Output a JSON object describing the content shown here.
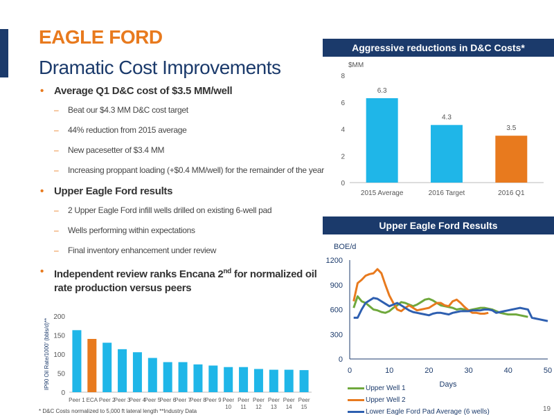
{
  "title": "EAGLE FORD",
  "subtitle": "Dramatic Cost Improvements",
  "bullets": [
    {
      "text": "Average Q1 D&C cost of $3.5 MM/well",
      "subs": [
        "Beat our $4.3 MM D&C cost target",
        "44% reduction from 2015 average",
        "New pacesetter of $3.4 MM",
        "Increasing proppant loading (+$0.4 MM/well) for the remainder of the year"
      ]
    },
    {
      "text": "Upper Eagle Ford results",
      "subs": [
        "2 Upper Eagle Ford infill wells drilled on existing 6-well pad",
        "Wells performing within expectations",
        "Final inventory enhancement under review"
      ]
    }
  ],
  "bullet3": {
    "pre": "Independent review ranks Encana 2",
    "sup": "nd",
    "post": " for normalized oil rate production versus peers"
  },
  "footnote": "* D&C Costs normalized to 5,000 ft lateral length  **Industry Data",
  "page_number": "19",
  "colors": {
    "navy": "#1b3a6b",
    "orange": "#e87a1e",
    "blue": "#1fb6e8",
    "green": "#6fa83c",
    "line_blue": "#2e5fb0"
  },
  "chart_data": [
    {
      "type": "bar",
      "title": "Aggressive reductions in D&C Costs*",
      "ylabel": "$MM",
      "categories": [
        "2015 Average",
        "2016 Target",
        "2016 Q1"
      ],
      "values": [
        6.3,
        4.3,
        3.5
      ],
      "data_labels": [
        "6.3",
        "4.3",
        "3.5"
      ],
      "colors": [
        "#1fb6e8",
        "#1fb6e8",
        "#e87a1e"
      ],
      "ylim": [
        0,
        8
      ],
      "yticks": [
        0,
        2,
        4,
        6,
        8
      ]
    },
    {
      "type": "line",
      "title": "Upper Eagle Ford Results",
      "ylabel": "BOE/d",
      "xlabel": "Days",
      "xlim": [
        0,
        50
      ],
      "ylim": [
        0,
        1200
      ],
      "xticks": [
        0,
        10,
        20,
        30,
        40,
        50
      ],
      "yticks": [
        0,
        300,
        600,
        900,
        1200
      ],
      "series": [
        {
          "name": "Upper Well 1",
          "color": "#6fa83c",
          "x": [
            1,
            2,
            3,
            4,
            5,
            6,
            7,
            8,
            9,
            10,
            11,
            12,
            13,
            14,
            15,
            16,
            17,
            18,
            19,
            20,
            21,
            22,
            23,
            24,
            25,
            26,
            27,
            28,
            29,
            30,
            31,
            32,
            33,
            34,
            35,
            36,
            37,
            38,
            39,
            40,
            41,
            42,
            43,
            44,
            45
          ],
          "y": [
            620,
            760,
            700,
            680,
            640,
            600,
            590,
            570,
            560,
            580,
            620,
            650,
            690,
            680,
            660,
            640,
            660,
            690,
            720,
            730,
            710,
            680,
            650,
            640,
            630,
            620,
            600,
            610,
            600,
            590,
            600,
            610,
            620,
            620,
            610,
            600,
            580,
            560,
            550,
            540,
            540,
            540,
            530,
            520,
            510
          ]
        },
        {
          "name": "Upper Well 2",
          "color": "#e87a1e",
          "x": [
            1,
            2,
            3,
            4,
            5,
            6,
            7,
            8,
            9,
            10,
            11,
            12,
            13,
            14,
            15,
            16,
            17,
            18,
            19,
            20,
            21,
            22,
            23,
            24,
            25,
            26,
            27,
            28,
            29,
            30,
            31,
            32,
            33,
            34,
            35
          ],
          "y": [
            700,
            920,
            960,
            1010,
            1030,
            1040,
            1090,
            1040,
            900,
            770,
            680,
            600,
            580,
            620,
            650,
            620,
            590,
            600,
            610,
            620,
            650,
            680,
            680,
            650,
            640,
            700,
            720,
            680,
            630,
            590,
            560,
            560,
            550,
            550,
            560
          ]
        },
        {
          "name": "Lower Eagle Ford Pad Average (6 wells)",
          "color": "#2e5fb0",
          "x": [
            1,
            2,
            3,
            4,
            5,
            6,
            7,
            8,
            9,
            10,
            11,
            12,
            13,
            14,
            15,
            16,
            17,
            18,
            19,
            20,
            21,
            22,
            23,
            24,
            25,
            26,
            27,
            28,
            29,
            30,
            31,
            32,
            33,
            34,
            35,
            36,
            37,
            38,
            39,
            40,
            41,
            42,
            43,
            44,
            45,
            46,
            47,
            48,
            49,
            50
          ],
          "y": [
            500,
            500,
            600,
            680,
            710,
            740,
            730,
            700,
            670,
            640,
            660,
            680,
            650,
            620,
            590,
            570,
            560,
            550,
            540,
            530,
            550,
            560,
            560,
            550,
            540,
            560,
            570,
            580,
            580,
            580,
            590,
            590,
            590,
            600,
            600,
            590,
            560,
            570,
            580,
            590,
            600,
            610,
            620,
            610,
            600,
            500,
            490,
            480,
            470,
            460
          ]
        }
      ]
    },
    {
      "type": "bar",
      "ylabel": "IP90 Oil Rate/1000' (bbls/d)**",
      "categories": [
        "Peer 1",
        "ECA",
        "Peer 2",
        "Peer 3",
        "Peer 4",
        "Peer 5",
        "Peer 6",
        "Peer 7",
        "Peer 8",
        "Peer 9",
        "Peer 10",
        "Peer 11",
        "Peer 12",
        "Peer 13",
        "Peer 14",
        "Peer 15"
      ],
      "values": [
        163,
        140,
        130,
        113,
        105,
        90,
        79,
        79,
        73,
        70,
        66,
        66,
        61,
        59,
        59,
        58
      ],
      "highlight": "ECA",
      "ylim": [
        0,
        200
      ],
      "yticks": [
        0,
        50,
        100,
        150,
        200
      ]
    }
  ]
}
